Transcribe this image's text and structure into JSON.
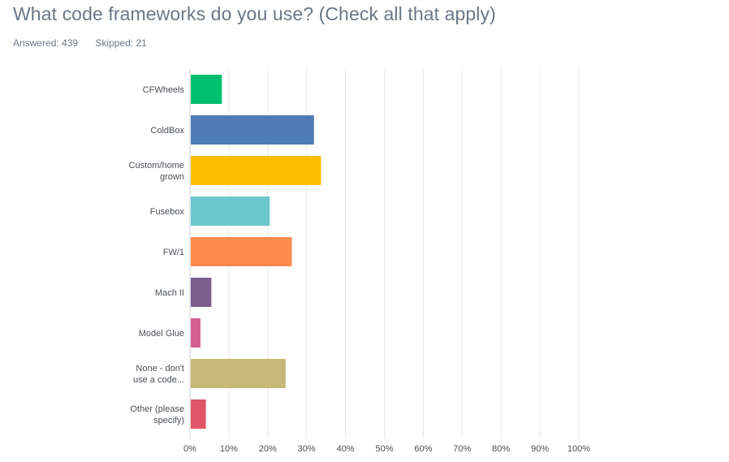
{
  "question": {
    "title": "What code frameworks do you use? (Check all that apply)",
    "answered": "Answered: 439",
    "skipped": "Skipped: 21"
  },
  "chart_data": {
    "type": "bar",
    "orientation": "horizontal",
    "categories": [
      [
        "CFWheels"
      ],
      [
        "ColdBox"
      ],
      [
        "Custom/home",
        "grown"
      ],
      [
        "Fusebox"
      ],
      [
        "FW/1"
      ],
      [
        "Mach II"
      ],
      [
        "Model Glue"
      ],
      [
        "None - don't",
        "use a code..."
      ],
      [
        "Other (please",
        "specify)"
      ]
    ],
    "values": [
      8.2,
      31.9,
      33.7,
      20.5,
      26.2,
      5.5,
      2.7,
      24.6,
      4.1
    ],
    "colors": [
      "#00bf6f",
      "#507cb6",
      "#f9be00",
      "#6bc8cd",
      "#ff8b4f",
      "#7d5e90",
      "#d25f90",
      "#c7b879",
      "#e05668"
    ],
    "xlim": [
      0,
      100
    ],
    "ticks": [
      "0%",
      "10%",
      "20%",
      "30%",
      "40%",
      "50%",
      "60%",
      "70%",
      "80%",
      "90%",
      "100%"
    ],
    "grid": true
  }
}
